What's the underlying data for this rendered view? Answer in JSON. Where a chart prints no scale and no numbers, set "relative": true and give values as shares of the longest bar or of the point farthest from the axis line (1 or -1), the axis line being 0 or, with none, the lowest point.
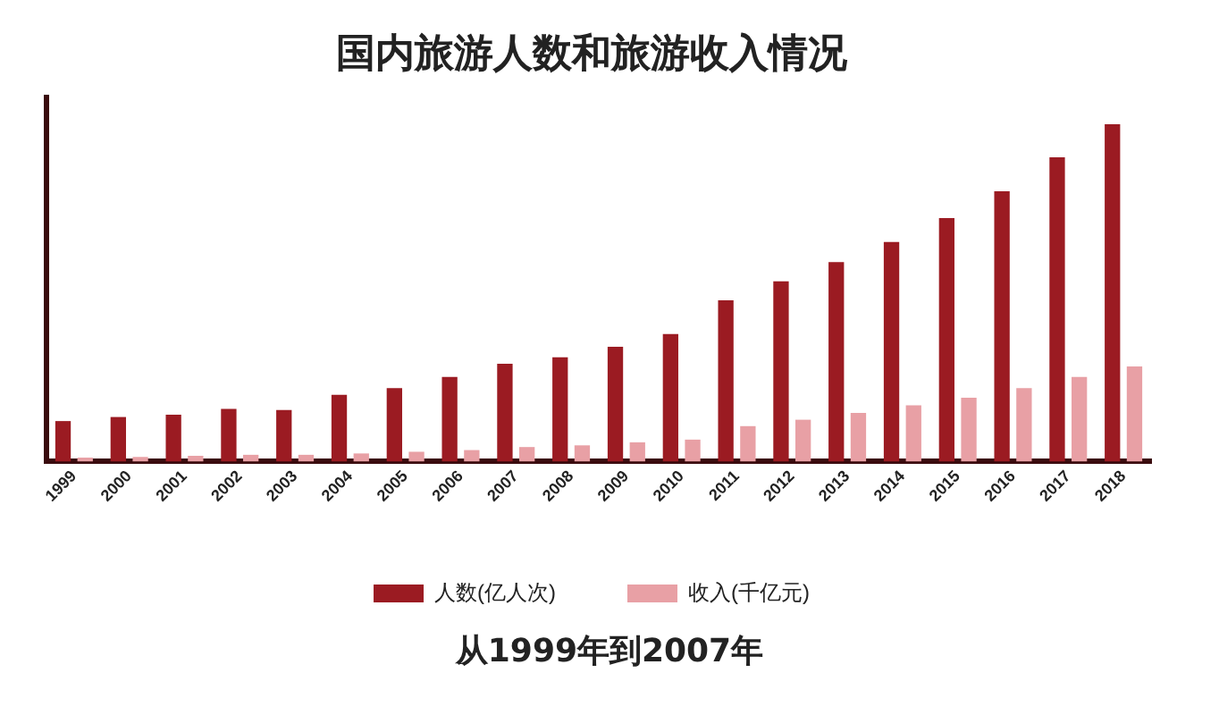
{
  "chart_data": {
    "type": "bar",
    "title": "国内旅游人数和旅游收入情况",
    "relative": true,
    "categories": [
      "1999",
      "2000",
      "2001",
      "2002",
      "2003",
      "2004",
      "2005",
      "2006",
      "2007",
      "2008",
      "2009",
      "2010",
      "2011",
      "2012",
      "2013",
      "2014",
      "2015",
      "2016",
      "2017",
      "2018"
    ],
    "series": [
      {
        "name": "人数(亿人次)",
        "color": "#9b1b22",
        "values": [
          0.12,
          0.132,
          0.139,
          0.156,
          0.153,
          0.198,
          0.218,
          0.251,
          0.29,
          0.309,
          0.34,
          0.378,
          0.478,
          0.534,
          0.591,
          0.651,
          0.722,
          0.801,
          0.902,
          1
        ]
      },
      {
        "name": "收入(千亿元)",
        "color": "#e8a0a5",
        "values": [
          0.012,
          0.014,
          0.017,
          0.02,
          0.02,
          0.024,
          0.029,
          0.034,
          0.043,
          0.048,
          0.057,
          0.065,
          0.105,
          0.124,
          0.144,
          0.167,
          0.189,
          0.218,
          0.251,
          0.282
        ]
      }
    ],
    "legend": "bottom",
    "grid": false,
    "annotations": [
      "从1999年到2007年"
    ]
  }
}
